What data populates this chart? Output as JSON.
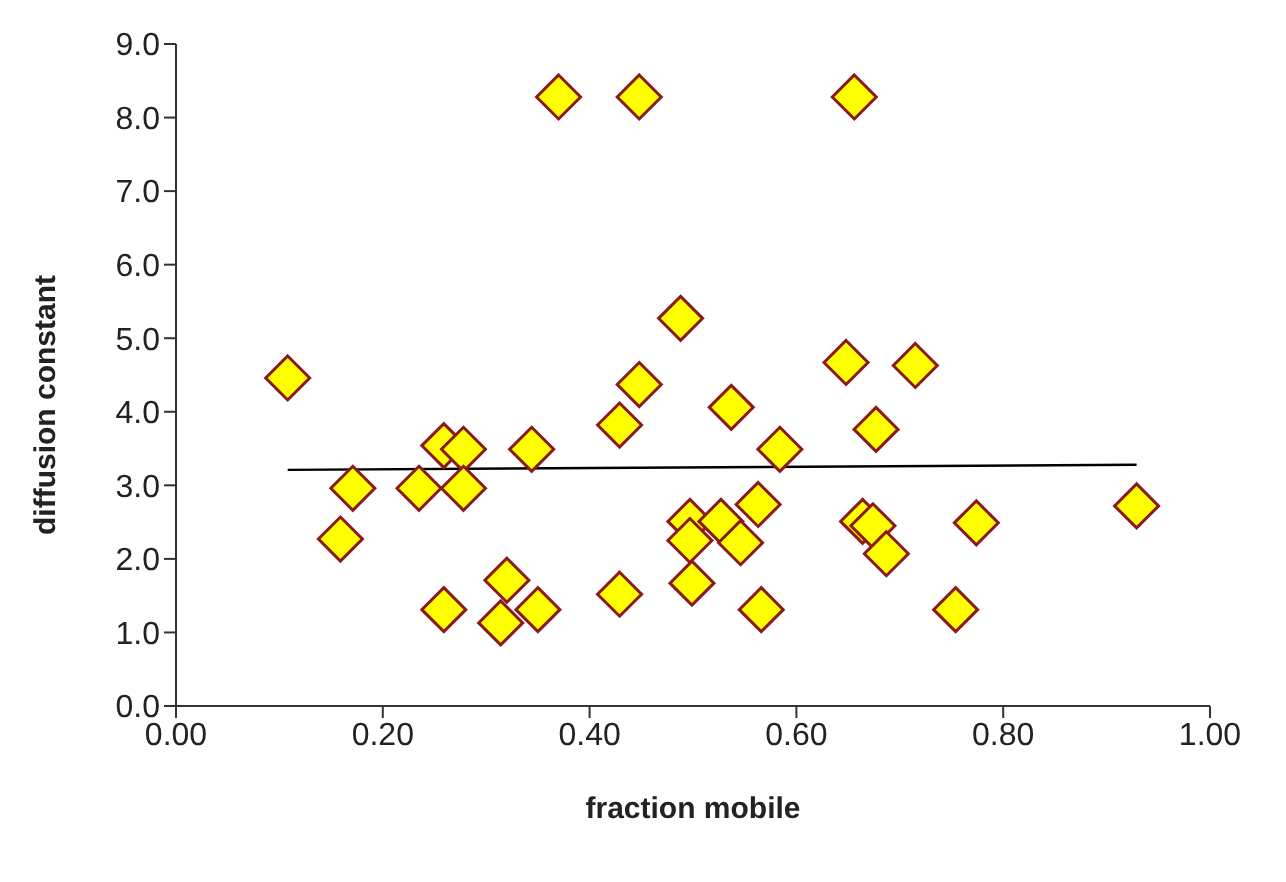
{
  "chart_data": {
    "type": "scatter",
    "xlabel": "fraction mobile",
    "ylabel": "diffusion constant",
    "marker": "diamond",
    "grid": false,
    "legend": false,
    "xlim": [
      0,
      1
    ],
    "ylim": [
      0,
      9
    ],
    "xticks": [
      {
        "value": 0,
        "label": "0.00"
      },
      {
        "value": 0.2,
        "label": "0.20"
      },
      {
        "value": 0.4,
        "label": "0.40"
      },
      {
        "value": 0.6,
        "label": "0.60"
      },
      {
        "value": 0.8,
        "label": "0.80"
      },
      {
        "value": 1,
        "label": "1.00"
      }
    ],
    "yticks": [
      {
        "value": 0,
        "label": "0.0"
      },
      {
        "value": 1,
        "label": "1.0"
      },
      {
        "value": 2,
        "label": "2.0"
      },
      {
        "value": 3,
        "label": "3.0"
      },
      {
        "value": 4,
        "label": "4.0"
      },
      {
        "value": 5,
        "label": "5.0"
      },
      {
        "value": 6,
        "label": "6.0"
      },
      {
        "value": 7,
        "label": "7.0"
      },
      {
        "value": 8,
        "label": "8.0"
      },
      {
        "value": 9,
        "label": "9.0"
      }
    ],
    "series": [
      {
        "color": "#ffff00",
        "x": [
          0.108,
          0.37,
          0.448,
          0.656,
          0.488,
          0.448,
          0.429,
          0.259,
          0.278,
          0.344,
          0.171,
          0.235,
          0.278,
          0.159,
          0.259,
          0.32,
          0.314,
          0.35,
          0.429,
          0.648,
          0.715,
          0.537,
          0.677,
          0.584,
          0.929,
          0.563,
          0.497,
          0.527,
          0.546,
          0.497,
          0.664,
          0.674,
          0.687,
          0.774,
          0.499,
          0.566,
          0.754
        ],
        "values": [
          4.46,
          8.28,
          8.28,
          8.28,
          5.27,
          4.37,
          3.82,
          3.54,
          3.49,
          3.49,
          2.96,
          2.96,
          2.96,
          2.27,
          1.31,
          1.71,
          1.13,
          1.31,
          1.52,
          4.67,
          4.63,
          4.06,
          3.76,
          3.49,
          2.72,
          2.74,
          2.51,
          2.51,
          2.22,
          2.25,
          2.51,
          2.45,
          2.07,
          2.49,
          1.67,
          1.31,
          1.31
        ]
      },
      {
        "type": "line",
        "color": "#000000",
        "marker": "none",
        "x": [
          0.108,
          0.929
        ],
        "values": [
          3.21,
          3.28
        ]
      }
    ]
  }
}
